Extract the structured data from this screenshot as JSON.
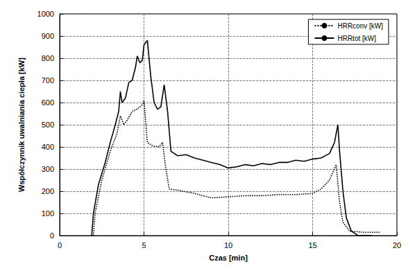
{
  "chart_data": {
    "type": "line",
    "x_label": "Czas [min]",
    "y_label": "Współczynnik uwalniania ciepła [kW]",
    "xlim": [
      0,
      20
    ],
    "xticks": [
      0,
      5,
      10,
      15,
      20
    ],
    "ylim": [
      0,
      1000
    ],
    "yticks": [
      0,
      100,
      200,
      300,
      400,
      500,
      600,
      700,
      800,
      900,
      1000
    ],
    "grid": true,
    "legend": "upper right",
    "series": [
      {
        "name": "HRRconv [kW]",
        "color": "#000000",
        "line_style": "dotted",
        "marker": "none",
        "x": [
          2.0,
          2.1,
          2.5,
          3.0,
          3.4,
          3.6,
          3.8,
          4.0,
          4.3,
          4.6,
          4.9,
          5.0,
          5.2,
          5.5,
          5.9,
          6.1,
          6.3,
          6.5,
          7.0,
          8.0,
          9.0,
          10.0,
          11.0,
          12.0,
          13.0,
          14.0,
          15.0,
          15.5,
          16.0,
          16.4,
          16.6,
          16.8,
          17.2,
          18.0,
          19.0
        ],
        "values": [
          0,
          100,
          250,
          380,
          460,
          540,
          500,
          520,
          560,
          570,
          590,
          610,
          420,
          405,
          400,
          420,
          300,
          210,
          205,
          190,
          170,
          175,
          180,
          180,
          185,
          185,
          190,
          210,
          250,
          320,
          150,
          60,
          20,
          15,
          15
        ]
      },
      {
        "name": "HRRtot [kW]",
        "color": "#000000",
        "line_style": "solid",
        "marker": "none",
        "x": [
          1.9,
          2.0,
          2.3,
          2.7,
          3.0,
          3.3,
          3.5,
          3.6,
          3.7,
          3.9,
          4.1,
          4.3,
          4.5,
          4.6,
          4.75,
          4.9,
          5.0,
          5.2,
          5.4,
          5.6,
          5.8,
          6.0,
          6.2,
          6.4,
          6.6,
          7.0,
          7.5,
          8.0,
          8.5,
          9.0,
          9.5,
          10.0,
          10.5,
          11.0,
          11.5,
          12.0,
          12.5,
          13.0,
          13.5,
          14.0,
          14.5,
          15.0,
          15.5,
          16.0,
          16.3,
          16.5,
          16.6,
          16.8,
          17.0,
          17.3,
          17.7,
          18.5
        ],
        "values": [
          0,
          100,
          230,
          330,
          420,
          500,
          560,
          650,
          600,
          620,
          690,
          700,
          760,
          810,
          780,
          790,
          860,
          880,
          720,
          600,
          570,
          580,
          680,
          560,
          380,
          360,
          365,
          350,
          340,
          330,
          320,
          305,
          310,
          320,
          315,
          325,
          320,
          330,
          330,
          340,
          335,
          345,
          350,
          370,
          420,
          500,
          380,
          200,
          80,
          20,
          0,
          0
        ]
      }
    ]
  }
}
